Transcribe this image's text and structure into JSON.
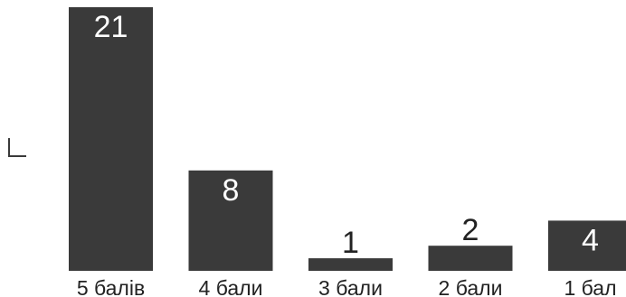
{
  "chart_data": {
    "type": "bar",
    "categories": [
      "5 балів",
      "4 бали",
      "3 бали",
      "2 бали",
      "1 бал"
    ],
    "values": [
      21,
      8,
      1,
      2,
      4
    ],
    "title": "",
    "xlabel": "",
    "ylabel": "",
    "ylim": [
      0,
      21
    ],
    "grid": false,
    "legend": "none",
    "colors": {
      "bar": "#3a3a3a",
      "label_inside": "#ffffff",
      "label_outside": "#222222",
      "tick_text": "#222222"
    }
  }
}
